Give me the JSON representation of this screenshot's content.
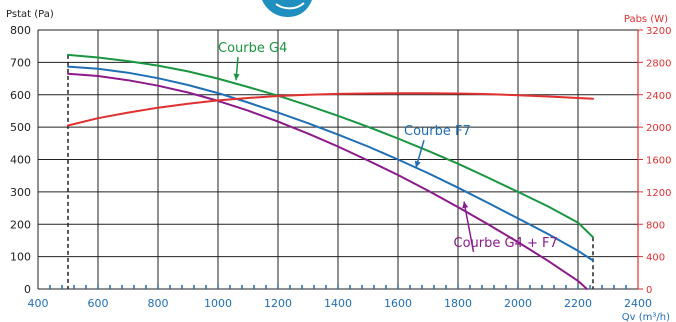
{
  "chart_data": {
    "type": "line",
    "left_axis": {
      "title": "Pstat (Pa)",
      "min": 0,
      "max": 800,
      "ticks": [
        0,
        100,
        200,
        300,
        400,
        500,
        600,
        700,
        800
      ],
      "color": "#222222"
    },
    "right_axis": {
      "title": "Pabs (W)",
      "min": 0,
      "max": 3200,
      "ticks": [
        0,
        400,
        800,
        1200,
        1600,
        2000,
        2400,
        2800,
        3200
      ],
      "color": "#e03030"
    },
    "x_axis": {
      "title": "Qv (m³/h)",
      "min": 400,
      "max": 2400,
      "ticks": [
        400,
        600,
        800,
        1000,
        1200,
        1400,
        1600,
        1800,
        2000,
        2200,
        2400
      ],
      "color": "#1f6fb6"
    },
    "grid": true,
    "series": [
      {
        "name": "Courbe G4",
        "axis": "left",
        "color": "#1a9640",
        "x": [
          500,
          600,
          700,
          800,
          900,
          1000,
          1100,
          1200,
          1300,
          1400,
          1500,
          1600,
          1700,
          1800,
          1900,
          2000,
          2100,
          2200,
          2250
        ],
        "y": [
          723,
          715,
          704,
          690,
          672,
          650,
          624,
          597,
          567,
          535,
          501,
          465,
          427,
          387,
          344,
          300,
          255,
          205,
          160
        ],
        "label": {
          "text": "Courbe G4",
          "x": 1000,
          "y": 732,
          "arrow_to": [
            1060,
            645
          ]
        }
      },
      {
        "name": "Courbe F7",
        "axis": "left",
        "color": "#1f6fb6",
        "x": [
          500,
          600,
          700,
          800,
          900,
          1000,
          1100,
          1200,
          1300,
          1400,
          1500,
          1600,
          1700,
          1800,
          1900,
          2000,
          2100,
          2200,
          2250
        ],
        "y": [
          687,
          680,
          668,
          651,
          630,
          605,
          576,
          545,
          512,
          477,
          440,
          400,
          358,
          313,
          266,
          218,
          170,
          118,
          88
        ],
        "label": {
          "text": "Courbe F7",
          "x": 1620,
          "y": 475,
          "arrow_to": [
            1660,
            375
          ]
        }
      },
      {
        "name": "Courbe G4 + F7",
        "axis": "left",
        "color": "#8b1a8b",
        "x": [
          500,
          600,
          700,
          800,
          900,
          1000,
          1100,
          1200,
          1300,
          1400,
          1500,
          1600,
          1700,
          1800,
          1900,
          2000,
          2100,
          2200,
          2230
        ],
        "y": [
          665,
          658,
          645,
          628,
          607,
          581,
          551,
          517,
          480,
          440,
          397,
          352,
          304,
          253,
          200,
          145,
          87,
          25,
          0
        ],
        "label": {
          "text": "Courbe G4 + F7",
          "x": 1785,
          "y": 130,
          "arrow_to": [
            1820,
            270
          ]
        }
      },
      {
        "name": "Pabs",
        "axis": "right",
        "color": "#e03030",
        "x": [
          500,
          600,
          700,
          800,
          900,
          1000,
          1100,
          1200,
          1300,
          1400,
          1500,
          1600,
          1700,
          1800,
          1900,
          2000,
          2100,
          2200,
          2250
        ],
        "y": [
          2020,
          2110,
          2180,
          2240,
          2290,
          2330,
          2360,
          2385,
          2400,
          2410,
          2415,
          2418,
          2418,
          2415,
          2408,
          2395,
          2378,
          2360,
          2350
        ]
      }
    ],
    "markers": {
      "color": "#1f6fb6",
      "x": [
        440,
        480,
        520,
        560,
        600,
        640,
        680,
        720,
        760,
        800,
        840,
        880,
        920,
        960,
        1000,
        1040,
        1080,
        1120,
        1160,
        1200,
        1240,
        1280,
        1320,
        1360,
        1400,
        1440,
        1480,
        1520,
        1560,
        1600,
        1640,
        1680,
        1720,
        1760,
        1800,
        1840,
        1880,
        1920,
        1960,
        2000,
        2040,
        2080,
        2120,
        2160,
        2200,
        2240,
        2280,
        2320,
        2360
      ]
    },
    "operating_limits": [
      {
        "x": 500,
        "y_top": 723,
        "style": "dashed",
        "color": "#222222"
      },
      {
        "x": 2250,
        "y_top": 160,
        "style": "dashed",
        "color": "#222222"
      }
    ]
  }
}
